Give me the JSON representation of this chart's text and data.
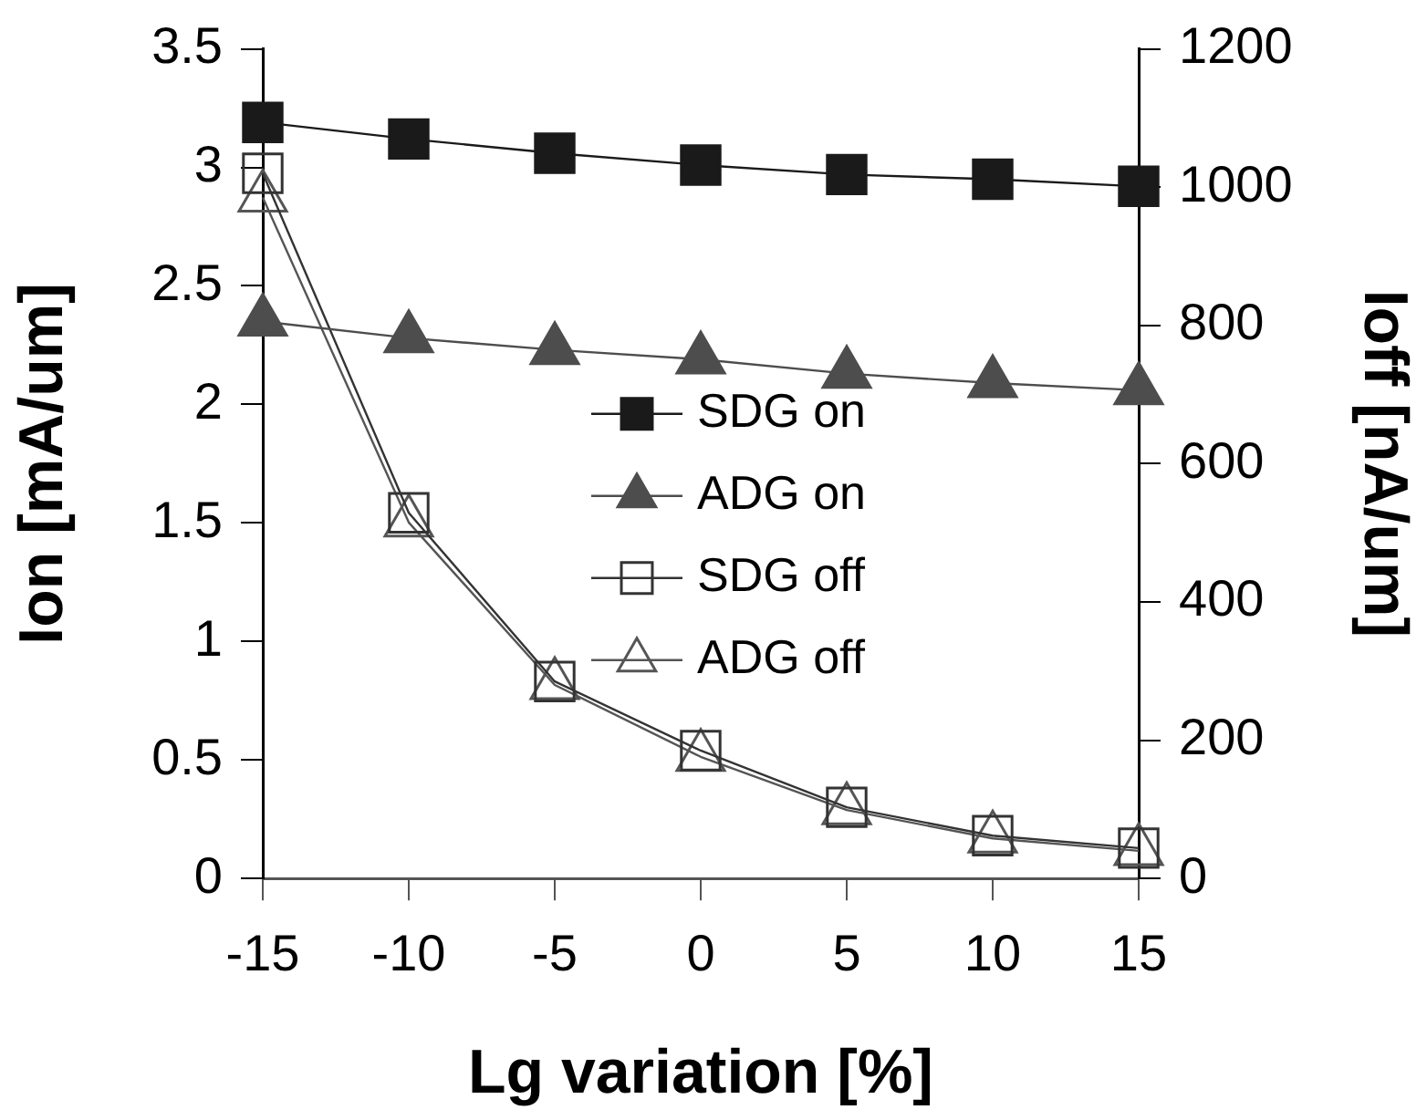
{
  "chart_data": {
    "type": "line",
    "xlabel": "Lg variation [%]",
    "ylabel": "Ion [mA/um]",
    "y2label": "Ioff [nA/um]",
    "x": [
      -15,
      -10,
      -5,
      0,
      5,
      10,
      15
    ],
    "xlim": [
      -15,
      15
    ],
    "xticks": [
      -15,
      -10,
      -5,
      0,
      5,
      10,
      15
    ],
    "ylim": [
      0,
      3.5
    ],
    "yticks": [
      0,
      0.5,
      1,
      1.5,
      2,
      2.5,
      3,
      3.5
    ],
    "y2lim": [
      0,
      1200
    ],
    "y2ticks": [
      0,
      200,
      400,
      600,
      800,
      1000,
      1200
    ],
    "grid": false,
    "legend": "right",
    "line_style": "solid",
    "series": [
      {
        "name": "SDG on",
        "color": "#1a1a1a",
        "marker": "square",
        "values": [
          3.19,
          3.12,
          3.06,
          3.01,
          2.97,
          2.95,
          2.92
        ]
      },
      {
        "name": "ADG on",
        "color": "#4d4d4d",
        "marker": "triangle",
        "values": [
          2.35,
          2.28,
          2.23,
          2.19,
          2.13,
          2.09,
          2.06
        ]
      },
      {
        "name": "SDG off",
        "color": "#333333",
        "marker": "square",
        "axis": "y2",
        "values": [
          1020,
          529,
          285,
          185,
          103,
          62,
          44
        ]
      },
      {
        "name": "ADG off",
        "color": "#555555",
        "marker": "triangle",
        "axis": "y2",
        "values": [
          985,
          515,
          280,
          176,
          99,
          58,
          40
        ]
      }
    ]
  }
}
